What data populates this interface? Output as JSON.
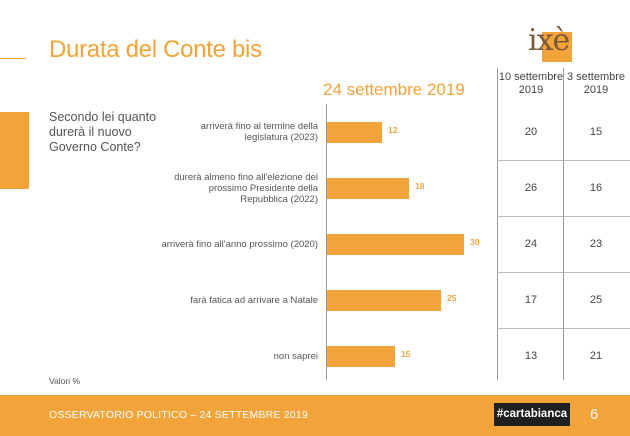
{
  "title": "Durata del Conte bis",
  "logo_text": "ixè",
  "question": "Secondo lei quanto durerà il nuovo Governo Conte?",
  "current_header": "24 settembre 2019",
  "columns": [
    "10 settembre 2019",
    "3 settembre 2019"
  ],
  "rows": [
    {
      "label": "arriverà fino al termine della legislatura (2023)",
      "current": 12,
      "sep10": 20,
      "sep3": 15
    },
    {
      "label": "durerà almeno fino all'elezione del prossimo Presidente della Repubblica (2022)",
      "current": 18,
      "sep10": 26,
      "sep3": 16
    },
    {
      "label": "arriverà fino all'anno prossimo (2020)",
      "current": 30,
      "sep10": 24,
      "sep3": 23
    },
    {
      "label": "farà fatica ad arrivare a Natale",
      "current": 25,
      "sep10": 17,
      "sep3": 25
    },
    {
      "label": "non saprei",
      "current": 15,
      "sep10": 13,
      "sep3": 21
    }
  ],
  "note": "Valori %",
  "footer": {
    "text": "OSSERVATORIO POLITICO – 24 SETTEMBRE 2019",
    "brand": "#cartabianca",
    "page": "6"
  },
  "colors": {
    "accent": "#f2a33a",
    "logo": "#7b5a3a",
    "footer_text": "#ffffff",
    "brand_bg": "#1f1f1f"
  },
  "chart_data": {
    "type": "bar",
    "title": "Durata del Conte bis",
    "categories": [
      "arriverà fino al termine della legislatura (2023)",
      "durerà almeno fino all'elezione del prossimo Presidente della Repubblica (2022)",
      "arriverà fino all'anno prossimo (2020)",
      "farà fatica ad arrivare a Natale",
      "non saprei"
    ],
    "series": [
      {
        "name": "24 settembre 2019",
        "values": [
          12,
          18,
          30,
          25,
          15
        ]
      },
      {
        "name": "10 settembre 2019",
        "values": [
          20,
          26,
          24,
          17,
          13
        ]
      },
      {
        "name": "3 settembre 2019",
        "values": [
          15,
          16,
          23,
          25,
          21
        ]
      }
    ],
    "orientation": "horizontal",
    "xlabel": "",
    "ylabel": "",
    "unit": "Valori %",
    "grid": false
  }
}
